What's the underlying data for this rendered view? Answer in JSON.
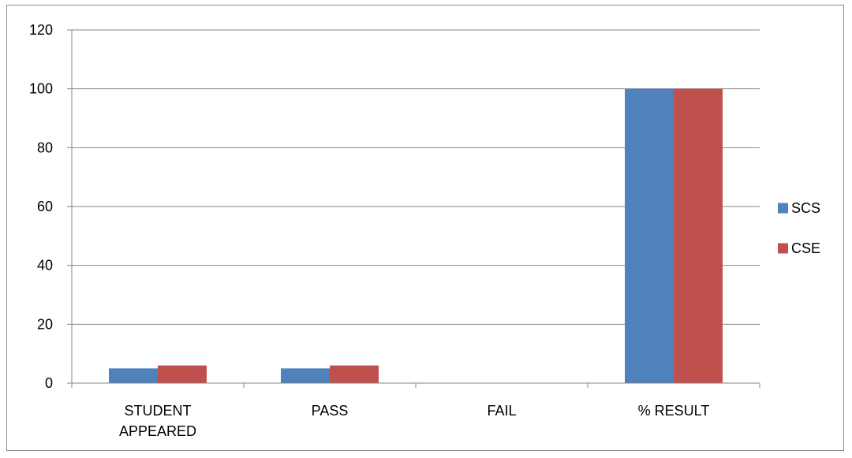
{
  "chart_data": {
    "type": "bar",
    "title": "",
    "xlabel": "",
    "ylabel": "",
    "categories": [
      [
        "STUDENT",
        "APPEARED"
      ],
      [
        "PASS"
      ],
      [
        "FAIL"
      ],
      [
        "% RESULT"
      ]
    ],
    "series": [
      {
        "name": "SCS",
        "color": "#4F81BD",
        "values": [
          5,
          5,
          0,
          100
        ]
      },
      {
        "name": "CSE",
        "color": "#C0504D",
        "values": [
          6,
          6,
          0,
          100
        ]
      }
    ],
    "ylim": [
      0,
      120
    ],
    "yticks": [
      0,
      20,
      40,
      60,
      80,
      100,
      120
    ],
    "grid": true,
    "legend_position": "right",
    "colors": {
      "grid": "#868686",
      "axis": "#868686",
      "border": "#8c8c8c",
      "text": "#000000"
    }
  }
}
